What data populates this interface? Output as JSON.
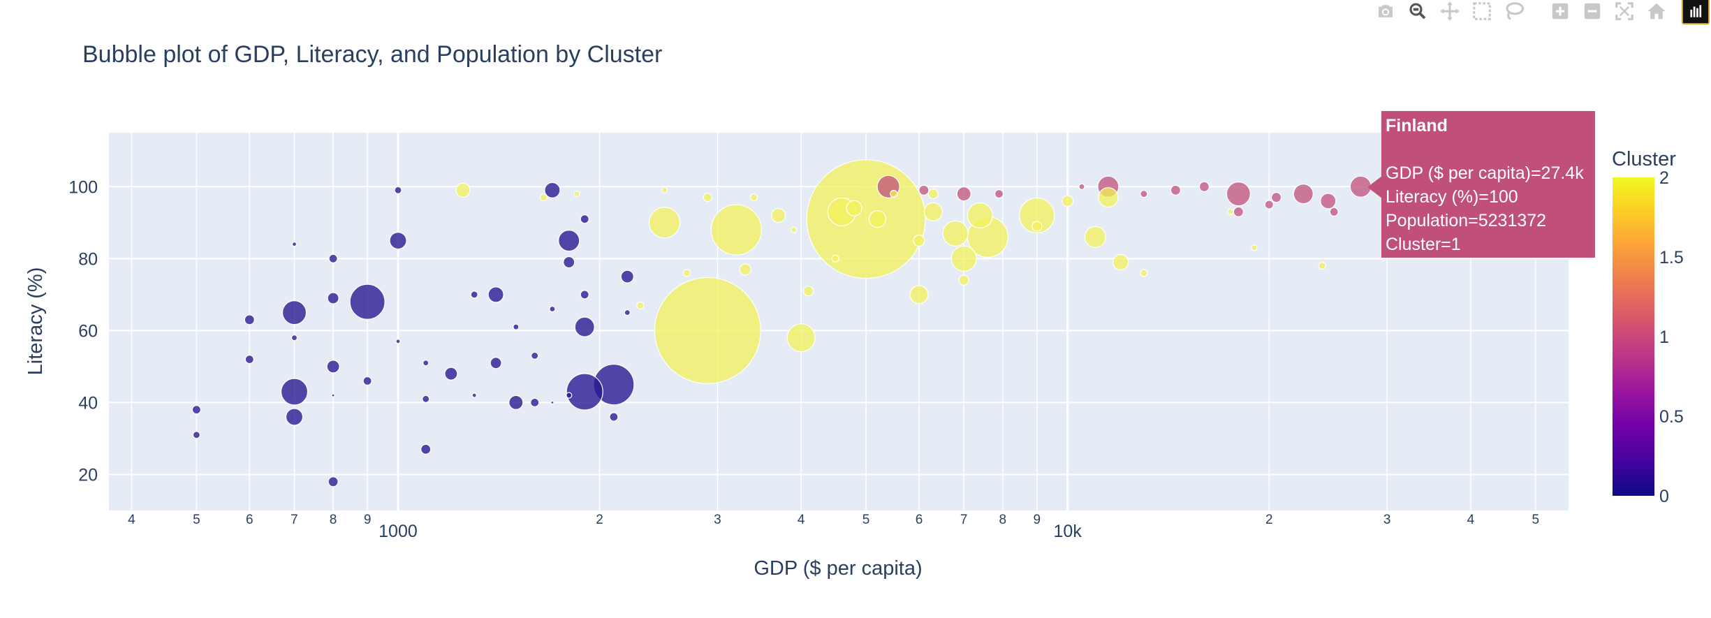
{
  "modebar": {
    "buttons": [
      "camera-icon",
      "zoom-icon",
      "pan-icon",
      "box-select-icon",
      "lasso-icon",
      "zoom-in-icon",
      "zoom-out-icon",
      "autoscale-icon",
      "home-icon",
      "plotly-logo-icon"
    ]
  },
  "tooltip": {
    "name": "Finland",
    "line1": "GDP ($ per capita)=27.4k",
    "line2": "Literacy (%)=100",
    "line3": "Population=5231372",
    "line4": "Cluster=1"
  },
  "colors": {
    "plot_bg": "#e5ecf6",
    "grid": "#ffffff",
    "cluster0": "#27168f",
    "cluster1": "#c0507a",
    "cluster2": "#f2f25a",
    "colorscale": [
      "#0d0887",
      "#46039f",
      "#7201a8",
      "#9c179e",
      "#bd3786",
      "#d8576b",
      "#ed7953",
      "#fb9f3a",
      "#fdca26",
      "#f0f921"
    ]
  },
  "chart_data": {
    "type": "scatter",
    "title": "Bubble plot of GDP, Literacy, and Population by Cluster",
    "xlabel": "GDP ($ per capita)",
    "ylabel": "Literacy (%)",
    "x_scale": "log",
    "xlim": [
      370,
      56000
    ],
    "ylim": [
      10,
      115
    ],
    "x_ticks_major": [
      {
        "v": 1000,
        "label": "1000"
      },
      {
        "v": 10000,
        "label": "10k"
      }
    ],
    "x_ticks_minor": [
      {
        "v": 400,
        "label": "4"
      },
      {
        "v": 500,
        "label": "5"
      },
      {
        "v": 600,
        "label": "6"
      },
      {
        "v": 700,
        "label": "7"
      },
      {
        "v": 800,
        "label": "8"
      },
      {
        "v": 900,
        "label": "9"
      },
      {
        "v": 2000,
        "label": "2"
      },
      {
        "v": 3000,
        "label": "3"
      },
      {
        "v": 4000,
        "label": "4"
      },
      {
        "v": 5000,
        "label": "5"
      },
      {
        "v": 6000,
        "label": "6"
      },
      {
        "v": 7000,
        "label": "7"
      },
      {
        "v": 8000,
        "label": "8"
      },
      {
        "v": 9000,
        "label": "9"
      },
      {
        "v": 20000,
        "label": "2"
      },
      {
        "v": 30000,
        "label": "3"
      },
      {
        "v": 40000,
        "label": "4"
      },
      {
        "v": 50000,
        "label": "5"
      }
    ],
    "y_ticks": [
      {
        "v": 20,
        "label": "20"
      },
      {
        "v": 40,
        "label": "40"
      },
      {
        "v": 60,
        "label": "60"
      },
      {
        "v": 80,
        "label": "80"
      },
      {
        "v": 100,
        "label": "100"
      }
    ],
    "colorbar": {
      "title": "Cluster",
      "range": [
        0,
        2
      ],
      "ticks": [
        {
          "v": 0,
          "label": "0"
        },
        {
          "v": 0.5,
          "label": "0.5"
        },
        {
          "v": 1,
          "label": "1"
        },
        {
          "v": 1.5,
          "label": "1.5"
        },
        {
          "v": 2,
          "label": "2"
        }
      ]
    },
    "points": [
      {
        "x": 500,
        "y": 38,
        "r": 6,
        "c": 0
      },
      {
        "x": 500,
        "y": 31,
        "r": 5,
        "c": 0
      },
      {
        "x": 600,
        "y": 63,
        "r": 7,
        "c": 0
      },
      {
        "x": 600,
        "y": 52,
        "r": 6,
        "c": 0
      },
      {
        "x": 700,
        "y": 84,
        "r": 3,
        "c": 0
      },
      {
        "x": 700,
        "y": 65,
        "r": 17,
        "c": 0
      },
      {
        "x": 700,
        "y": 58,
        "r": 4,
        "c": 0
      },
      {
        "x": 700,
        "y": 43,
        "r": 19,
        "c": 0
      },
      {
        "x": 700,
        "y": 36,
        "r": 12,
        "c": 0
      },
      {
        "x": 800,
        "y": 80,
        "r": 6,
        "c": 0
      },
      {
        "x": 800,
        "y": 69,
        "r": 8,
        "c": 0
      },
      {
        "x": 800,
        "y": 50,
        "r": 9,
        "c": 0
      },
      {
        "x": 800,
        "y": 42,
        "r": 2,
        "c": 0
      },
      {
        "x": 800,
        "y": 18,
        "r": 7,
        "c": 0
      },
      {
        "x": 900,
        "y": 68,
        "r": 25,
        "c": 0
      },
      {
        "x": 900,
        "y": 46,
        "r": 6,
        "c": 0
      },
      {
        "x": 1000,
        "y": 99,
        "r": 5,
        "c": 0
      },
      {
        "x": 1000,
        "y": 85,
        "r": 12,
        "c": 0
      },
      {
        "x": 1000,
        "y": 57,
        "r": 3,
        "c": 0
      },
      {
        "x": 1100,
        "y": 51,
        "r": 4,
        "c": 0
      },
      {
        "x": 1100,
        "y": 41,
        "r": 5,
        "c": 0
      },
      {
        "x": 1100,
        "y": 27,
        "r": 7,
        "c": 0
      },
      {
        "x": 1200,
        "y": 48,
        "r": 9,
        "c": 0
      },
      {
        "x": 1300,
        "y": 70,
        "r": 5,
        "c": 0
      },
      {
        "x": 1300,
        "y": 42,
        "r": 3,
        "c": 0
      },
      {
        "x": 1400,
        "y": 70,
        "r": 11,
        "c": 0
      },
      {
        "x": 1400,
        "y": 51,
        "r": 8,
        "c": 0
      },
      {
        "x": 1500,
        "y": 61,
        "r": 4,
        "c": 0
      },
      {
        "x": 1500,
        "y": 40,
        "r": 10,
        "c": 0
      },
      {
        "x": 1600,
        "y": 53,
        "r": 5,
        "c": 0
      },
      {
        "x": 1600,
        "y": 40,
        "r": 6,
        "c": 0
      },
      {
        "x": 1700,
        "y": 99,
        "r": 11,
        "c": 0
      },
      {
        "x": 1700,
        "y": 66,
        "r": 4,
        "c": 0
      },
      {
        "x": 1700,
        "y": 40,
        "r": 2,
        "c": 0
      },
      {
        "x": 1800,
        "y": 85,
        "r": 15,
        "c": 0
      },
      {
        "x": 1800,
        "y": 79,
        "r": 8,
        "c": 0
      },
      {
        "x": 1800,
        "y": 42,
        "r": 4,
        "c": 0
      },
      {
        "x": 1900,
        "y": 91,
        "r": 6,
        "c": 0
      },
      {
        "x": 1900,
        "y": 70,
        "r": 6,
        "c": 0
      },
      {
        "x": 1900,
        "y": 61,
        "r": 14,
        "c": 0
      },
      {
        "x": 1900,
        "y": 43,
        "r": 26,
        "c": 0
      },
      {
        "x": 2100,
        "y": 45,
        "r": 29,
        "c": 0
      },
      {
        "x": 2100,
        "y": 36,
        "r": 6,
        "c": 0
      },
      {
        "x": 2200,
        "y": 75,
        "r": 9,
        "c": 0
      },
      {
        "x": 2200,
        "y": 65,
        "r": 4,
        "c": 0
      },
      {
        "x": 1250,
        "y": 99,
        "r": 10,
        "c": 2
      },
      {
        "x": 1650,
        "y": 97,
        "r": 5,
        "c": 2
      },
      {
        "x": 1850,
        "y": 98,
        "r": 4,
        "c": 2
      },
      {
        "x": 2300,
        "y": 67,
        "r": 5,
        "c": 2
      },
      {
        "x": 2500,
        "y": 90,
        "r": 22,
        "c": 2
      },
      {
        "x": 2500,
        "y": 99,
        "r": 4,
        "c": 2
      },
      {
        "x": 2700,
        "y": 76,
        "r": 5,
        "c": 2
      },
      {
        "x": 2900,
        "y": 97,
        "r": 6,
        "c": 2
      },
      {
        "x": 2900,
        "y": 60,
        "r": 76,
        "c": 2
      },
      {
        "x": 3200,
        "y": 88,
        "r": 36,
        "c": 2
      },
      {
        "x": 3300,
        "y": 77,
        "r": 8,
        "c": 2
      },
      {
        "x": 3400,
        "y": 97,
        "r": 5,
        "c": 2
      },
      {
        "x": 3700,
        "y": 92,
        "r": 10,
        "c": 2
      },
      {
        "x": 3900,
        "y": 88,
        "r": 4,
        "c": 2
      },
      {
        "x": 4100,
        "y": 71,
        "r": 7,
        "c": 2
      },
      {
        "x": 4000,
        "y": 58,
        "r": 20,
        "c": 2
      },
      {
        "x": 4600,
        "y": 93,
        "r": 20,
        "c": 2
      },
      {
        "x": 4500,
        "y": 80,
        "r": 5,
        "c": 2
      },
      {
        "x": 4800,
        "y": 94,
        "r": 11,
        "c": 2
      },
      {
        "x": 5000,
        "y": 91,
        "r": 85,
        "c": 2
      },
      {
        "x": 5200,
        "y": 91,
        "r": 12,
        "c": 2
      },
      {
        "x": 5500,
        "y": 98,
        "r": 5,
        "c": 2
      },
      {
        "x": 6000,
        "y": 70,
        "r": 13,
        "c": 2
      },
      {
        "x": 6000,
        "y": 85,
        "r": 8,
        "c": 2
      },
      {
        "x": 6300,
        "y": 93,
        "r": 13,
        "c": 2
      },
      {
        "x": 6300,
        "y": 98,
        "r": 7,
        "c": 2
      },
      {
        "x": 6800,
        "y": 87,
        "r": 18,
        "c": 2
      },
      {
        "x": 7000,
        "y": 80,
        "r": 18,
        "c": 2
      },
      {
        "x": 7000,
        "y": 74,
        "r": 7,
        "c": 2
      },
      {
        "x": 7400,
        "y": 92,
        "r": 18,
        "c": 2
      },
      {
        "x": 7600,
        "y": 86,
        "r": 29,
        "c": 2
      },
      {
        "x": 9000,
        "y": 92,
        "r": 25,
        "c": 2
      },
      {
        "x": 9000,
        "y": 89,
        "r": 7,
        "c": 2
      },
      {
        "x": 10000,
        "y": 96,
        "r": 8,
        "c": 2
      },
      {
        "x": 11000,
        "y": 86,
        "r": 15,
        "c": 2
      },
      {
        "x": 11500,
        "y": 97,
        "r": 14,
        "c": 2
      },
      {
        "x": 12000,
        "y": 79,
        "r": 11,
        "c": 2
      },
      {
        "x": 13000,
        "y": 76,
        "r": 5,
        "c": 2
      },
      {
        "x": 17500,
        "y": 93,
        "r": 4,
        "c": 2
      },
      {
        "x": 19000,
        "y": 83,
        "r": 4,
        "c": 2
      },
      {
        "x": 24000,
        "y": 78,
        "r": 5,
        "c": 2
      },
      {
        "x": 5400,
        "y": 100,
        "r": 16,
        "c": 1
      },
      {
        "x": 6100,
        "y": 99,
        "r": 7,
        "c": 1
      },
      {
        "x": 7000,
        "y": 98,
        "r": 10,
        "c": 1
      },
      {
        "x": 7900,
        "y": 98,
        "r": 6,
        "c": 1
      },
      {
        "x": 10500,
        "y": 100,
        "r": 4,
        "c": 1
      },
      {
        "x": 11500,
        "y": 100,
        "r": 15,
        "c": 1
      },
      {
        "x": 13000,
        "y": 98,
        "r": 5,
        "c": 1
      },
      {
        "x": 14500,
        "y": 99,
        "r": 7,
        "c": 1
      },
      {
        "x": 16000,
        "y": 100,
        "r": 7,
        "c": 1
      },
      {
        "x": 18000,
        "y": 98,
        "r": 17,
        "c": 1
      },
      {
        "x": 18000,
        "y": 93,
        "r": 7,
        "c": 1
      },
      {
        "x": 20500,
        "y": 97,
        "r": 7,
        "c": 1
      },
      {
        "x": 20000,
        "y": 95,
        "r": 6,
        "c": 1
      },
      {
        "x": 22500,
        "y": 98,
        "r": 14,
        "c": 1
      },
      {
        "x": 24500,
        "y": 96,
        "r": 11,
        "c": 1
      },
      {
        "x": 25000,
        "y": 93,
        "r": 6,
        "c": 1
      },
      {
        "x": 27400,
        "y": 100,
        "r": 15,
        "c": 1
      }
    ]
  }
}
